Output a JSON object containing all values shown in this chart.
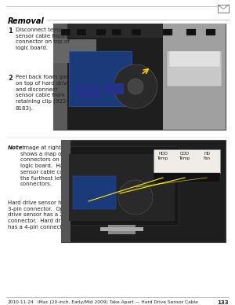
{
  "bg_color": "#ffffff",
  "text_color": "#222222",
  "title_color": "#000000",
  "footer_left_text": "2010-11-24",
  "footer_center_text": "iMac (20-inch, Early/Mid 2009) Take Apart — Hard Drive Sensor Cable",
  "footer_right_text": "133",
  "section_title": "Removal",
  "step1_num": "1",
  "step1_text": "Disconnect temp\nsensor cable from its\nconnector on top of\nlogic board.",
  "step2_num": "2",
  "step2_text": "Peel back foam gasket\non top of hard drive\nand disconnect\nsensor cable from\nretaining clip (922-\n8183).",
  "note_label": "Note:",
  "note_text": " Image at right\nshows a map of\nconnectors on top of\nlogic board.  Hard drive\nsensor cable connects to\nthe furthest left of the 3\nconnectors.",
  "note_text2": "Hard drive sensor has a\n3-pin connector.  Optical\ndrive sensor has a 2-pin\nconnector.  Hard drive fan\nhas a 4-pin connector.",
  "callout_labels": [
    "HDD\nTemp",
    "ODD\nTemp",
    "HD\nFan"
  ],
  "font_size_title": 7.0,
  "font_size_body": 5.0,
  "font_size_footer": 4.2,
  "font_size_step_num": 6.0,
  "font_size_note_label": 5.2
}
